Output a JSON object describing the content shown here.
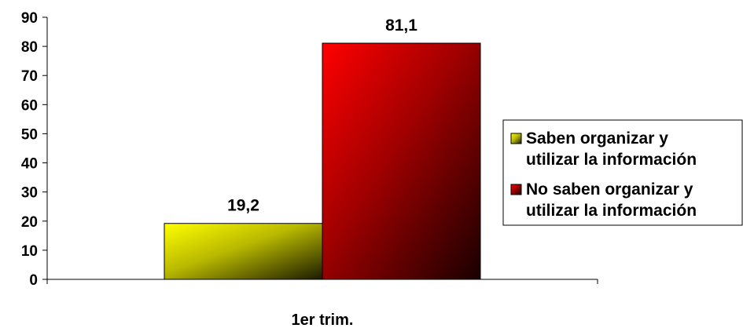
{
  "chart_data": {
    "type": "bar",
    "categories": [
      "1er trim."
    ],
    "series": [
      {
        "name": "Saben organizar y utilizar la información",
        "legend_lines": [
          "Saben organizar y",
          "utilizar la información"
        ],
        "values": [
          19.2
        ],
        "value_labels": [
          "19,2"
        ],
        "color": "#ffff00"
      },
      {
        "name": "No saben organizar y utilizar la información",
        "legend_lines": [
          "No saben organizar y",
          "utilizar la información"
        ],
        "values": [
          81.1
        ],
        "value_labels": [
          "81,1"
        ],
        "color": "#ff0000"
      }
    ],
    "ylim": [
      0,
      90
    ],
    "yticks": [
      0,
      10,
      20,
      30,
      40,
      50,
      60,
      70,
      80,
      90
    ],
    "title": "",
    "xlabel": "",
    "ylabel": "",
    "grid": false,
    "legend_position": "right"
  }
}
